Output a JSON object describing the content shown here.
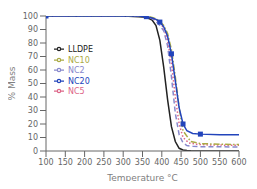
{
  "chart_data": {
    "type": "line",
    "xlabel": "Temperature °C",
    "ylabel": "% Mass",
    "xlim": [
      100,
      600
    ],
    "ylim": [
      0,
      100
    ],
    "xticks": [
      100,
      150,
      200,
      250,
      300,
      350,
      400,
      450,
      500,
      550,
      600
    ],
    "yticks": [
      0,
      10,
      20,
      30,
      40,
      50,
      60,
      70,
      80,
      90,
      100
    ],
    "legend": "left",
    "series": [
      {
        "name": "LLDPE",
        "color": "#222222",
        "line_style": "solid",
        "x": [
          100,
          300,
          340,
          360,
          375,
          385,
          395,
          405,
          415,
          425,
          435,
          445,
          455,
          465,
          475,
          500,
          600
        ],
        "values": [
          100,
          100,
          99.5,
          99,
          97,
          93,
          82,
          62,
          38,
          18,
          7,
          2,
          0.8,
          0.3,
          0.1,
          0,
          0
        ]
      },
      {
        "name": "NC2",
        "color": "#8888cc",
        "line_style": "dashed",
        "x": [
          100,
          300,
          340,
          360,
          375,
          385,
          395,
          405,
          415,
          425,
          435,
          445,
          455,
          465,
          480,
          500,
          600
        ],
        "values": [
          100,
          100,
          100,
          99.5,
          98,
          96,
          93,
          89,
          78,
          55,
          28,
          12,
          6,
          4,
          3.5,
          3.2,
          3
        ]
      },
      {
        "name": "NC5",
        "color": "#dd6688",
        "line_style": "dotted",
        "x": [
          100,
          300,
          340,
          360,
          375,
          385,
          395,
          405,
          415,
          425,
          435,
          445,
          455,
          470,
          490,
          520,
          600
        ],
        "values": [
          100,
          100,
          100,
          99.5,
          98.5,
          97,
          95,
          91,
          82,
          65,
          40,
          20,
          10,
          6,
          5,
          4.5,
          4.2
        ]
      },
      {
        "name": "NC10",
        "color": "#aaaa44",
        "line_style": "dashdot",
        "x": [
          100,
          300,
          340,
          360,
          375,
          385,
          395,
          405,
          415,
          425,
          435,
          445,
          455,
          475,
          500,
          550,
          600
        ],
        "values": [
          100,
          100,
          100,
          100,
          99,
          98,
          96,
          93,
          87,
          75,
          55,
          32,
          15,
          7,
          5.5,
          5,
          4.8
        ]
      },
      {
        "name": "NC20",
        "color": "#2244bb",
        "line_style": "solid",
        "marker": "square",
        "x": [
          100,
          300,
          340,
          360,
          375,
          385,
          395,
          405,
          415,
          425,
          435,
          445,
          455,
          465,
          480,
          500,
          550,
          600
        ],
        "values": [
          100,
          100,
          100,
          99.5,
          98.5,
          97.5,
          95.5,
          92,
          85,
          72,
          52,
          32,
          20,
          15,
          13,
          12.5,
          12,
          12
        ]
      }
    ]
  }
}
